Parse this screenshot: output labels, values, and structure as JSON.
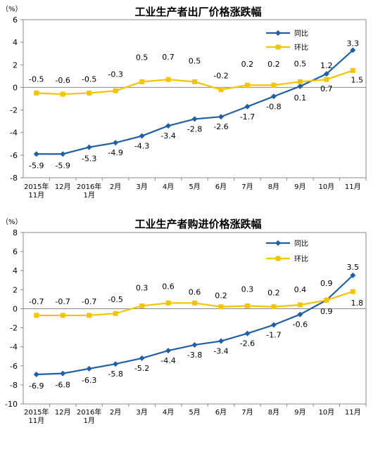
{
  "chart_data": [
    {
      "type": "line",
      "title": "工业生产者出厂价格涨跌幅",
      "unit": "（%）",
      "ylim": [
        -8,
        6
      ],
      "yticks": [
        -8,
        -6,
        -4,
        -2,
        0,
        2,
        4,
        6
      ],
      "grid": false,
      "legend_position": "top-right",
      "categories": [
        [
          "2015年",
          "11月"
        ],
        [
          "12月"
        ],
        [
          "2016年",
          "1月"
        ],
        [
          "2月"
        ],
        [
          "3月"
        ],
        [
          "4月"
        ],
        [
          "5月"
        ],
        [
          "6月"
        ],
        [
          "7月"
        ],
        [
          "8月"
        ],
        [
          "9月"
        ],
        [
          "10月"
        ],
        [
          "11月"
        ]
      ],
      "series": [
        {
          "name": "同比",
          "color": "#1F5FA6",
          "marker": "diamond",
          "values": [
            -5.9,
            -5.9,
            -5.3,
            -4.9,
            -4.3,
            -3.4,
            -2.8,
            -2.6,
            -1.7,
            -0.8,
            0.1,
            1.2,
            3.3
          ]
        },
        {
          "name": "环比",
          "color": "#F5C400",
          "marker": "square",
          "values": [
            -0.5,
            -0.6,
            -0.5,
            -0.3,
            0.5,
            0.7,
            0.5,
            -0.2,
            0.2,
            0.2,
            0.5,
            0.7,
            1.5
          ]
        }
      ]
    },
    {
      "type": "line",
      "title": "工业生产者购进价格涨跌幅",
      "unit": "（%）",
      "ylim": [
        -10,
        8
      ],
      "yticks": [
        -10,
        -8,
        -6,
        -4,
        -2,
        0,
        2,
        4,
        6,
        8
      ],
      "grid": false,
      "legend_position": "top-right",
      "categories": [
        [
          "2015年",
          "11月"
        ],
        [
          "12月"
        ],
        [
          "2016年",
          "1月"
        ],
        [
          "2月"
        ],
        [
          "3月"
        ],
        [
          "4月"
        ],
        [
          "5月"
        ],
        [
          "6月"
        ],
        [
          "7月"
        ],
        [
          "8月"
        ],
        [
          "9月"
        ],
        [
          "10月"
        ],
        [
          "11月"
        ]
      ],
      "series": [
        {
          "name": "同比",
          "color": "#1F5FA6",
          "marker": "diamond",
          "values": [
            -6.9,
            -6.8,
            -6.3,
            -5.8,
            -5.2,
            -4.4,
            -3.8,
            -3.4,
            -2.6,
            -1.7,
            -0.6,
            0.9,
            3.5
          ]
        },
        {
          "name": "环比",
          "color": "#F5C400",
          "marker": "square",
          "values": [
            -0.7,
            -0.7,
            -0.7,
            -0.5,
            0.3,
            0.6,
            0.6,
            0.2,
            0.3,
            0.2,
            0.4,
            0.9,
            1.8
          ]
        }
      ]
    }
  ]
}
